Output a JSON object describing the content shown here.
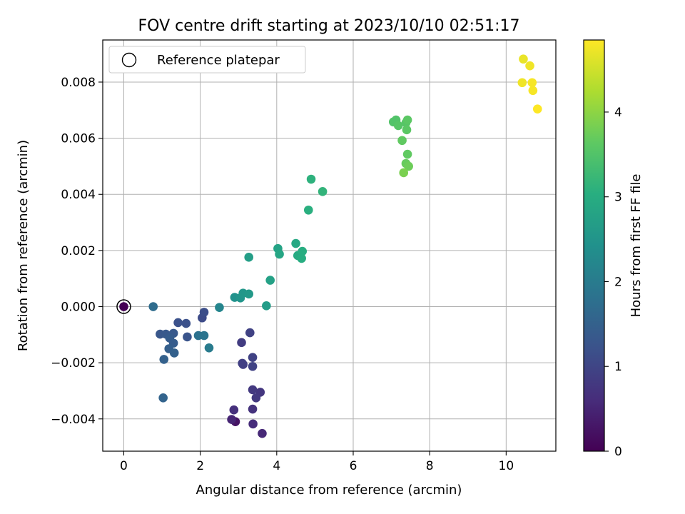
{
  "chart_data": {
    "type": "scatter",
    "title": "FOV centre drift starting at 2023/10/10 02:51:17",
    "xlabel": "Angular distance from reference (arcmin)",
    "ylabel": "Rotation from reference (arcmin)",
    "xlim": [
      -0.55,
      11.3
    ],
    "ylim": [
      -0.00515,
      0.0095
    ],
    "xticks": [
      0,
      2,
      4,
      6,
      8,
      10
    ],
    "yticks": [
      -0.004,
      -0.002,
      0.0,
      0.002,
      0.004,
      0.006,
      0.008
    ],
    "ytick_labels": [
      "−0.004",
      "−0.002",
      "0.000",
      "0.002",
      "0.004",
      "0.006",
      "0.008"
    ],
    "grid": true,
    "colormap": "viridis",
    "colorbar": {
      "label": "Hours from first FF file",
      "range": [
        0,
        4.85
      ],
      "ticks": [
        0,
        1,
        2,
        3,
        4
      ]
    },
    "legend": {
      "position": "upper-left",
      "entries": [
        "Reference platepar"
      ]
    },
    "reference": {
      "x": 0,
      "y": 0
    },
    "points": [
      [
        0.0,
        0.0,
        0.0
      ],
      [
        2.92,
        -0.0041,
        0.25
      ],
      [
        2.82,
        -0.00402,
        0.5
      ],
      [
        3.62,
        -0.00452,
        0.55
      ],
      [
        3.38,
        -0.00418,
        0.6
      ],
      [
        2.88,
        -0.00368,
        0.65
      ],
      [
        3.37,
        -0.00365,
        0.7
      ],
      [
        3.57,
        -0.00305,
        0.75
      ],
      [
        3.37,
        -0.00296,
        0.8
      ],
      [
        3.46,
        -0.00325,
        0.8
      ],
      [
        3.08,
        -0.00128,
        0.85
      ],
      [
        3.1,
        -0.00202,
        0.9
      ],
      [
        3.12,
        -0.00206,
        0.9
      ],
      [
        3.37,
        -0.00213,
        0.95
      ],
      [
        3.3,
        -0.00093,
        0.95
      ],
      [
        3.37,
        -0.00181,
        0.95
      ],
      [
        2.05,
        -0.0004,
        1.1
      ],
      [
        2.1,
        -0.0002,
        1.15
      ],
      [
        1.42,
        -0.00057,
        1.2
      ],
      [
        1.63,
        -0.0006,
        1.2
      ],
      [
        1.66,
        -0.00108,
        1.25
      ],
      [
        0.95,
        -0.00098,
        1.3
      ],
      [
        1.1,
        -0.00098,
        1.35
      ],
      [
        1.3,
        -0.00095,
        1.35
      ],
      [
        1.2,
        -0.00112,
        1.4
      ],
      [
        1.3,
        -0.0013,
        1.4
      ],
      [
        1.18,
        -0.0015,
        1.45
      ],
      [
        1.32,
        -0.00165,
        1.5
      ],
      [
        1.05,
        -0.00188,
        1.5
      ],
      [
        1.03,
        -0.00325,
        1.55
      ],
      [
        0.77,
        0.0,
        1.7
      ],
      [
        1.95,
        -0.00103,
        1.8
      ],
      [
        2.1,
        -0.00103,
        1.85
      ],
      [
        2.23,
        -0.00147,
        2.0
      ],
      [
        2.5,
        -3e-05,
        2.2
      ],
      [
        2.9,
        0.00033,
        2.45
      ],
      [
        3.05,
        0.00031,
        2.5
      ],
      [
        3.12,
        0.00048,
        2.55
      ],
      [
        3.27,
        0.00045,
        2.6
      ],
      [
        3.73,
        3e-05,
        2.65
      ],
      [
        3.27,
        0.00176,
        2.7
      ],
      [
        3.83,
        0.00094,
        2.75
      ],
      [
        4.03,
        0.00207,
        2.8
      ],
      [
        4.07,
        0.00187,
        2.85
      ],
      [
        4.5,
        0.00225,
        2.9
      ],
      [
        4.55,
        0.00182,
        2.95
      ],
      [
        4.65,
        0.00172,
        3.0
      ],
      [
        4.67,
        0.00197,
        3.0
      ],
      [
        4.83,
        0.00344,
        3.05
      ],
      [
        4.9,
        0.00454,
        3.1
      ],
      [
        5.2,
        0.0041,
        3.15
      ],
      [
        7.05,
        0.00658,
        3.5
      ],
      [
        7.12,
        0.00665,
        3.5
      ],
      [
        7.18,
        0.00645,
        3.55
      ],
      [
        7.38,
        0.00655,
        3.55
      ],
      [
        7.42,
        0.00665,
        3.6
      ],
      [
        7.4,
        0.0063,
        3.6
      ],
      [
        7.28,
        0.00592,
        3.65
      ],
      [
        7.42,
        0.00543,
        3.65
      ],
      [
        7.38,
        0.0051,
        3.7
      ],
      [
        7.45,
        0.005,
        3.75
      ],
      [
        7.32,
        0.00477,
        3.85
      ],
      [
        10.45,
        0.00882,
        4.7
      ],
      [
        10.62,
        0.00858,
        4.75
      ],
      [
        10.42,
        0.00798,
        4.75
      ],
      [
        10.68,
        0.00798,
        4.8
      ],
      [
        10.7,
        0.0077,
        4.8
      ],
      [
        10.82,
        0.00704,
        4.85
      ]
    ]
  }
}
